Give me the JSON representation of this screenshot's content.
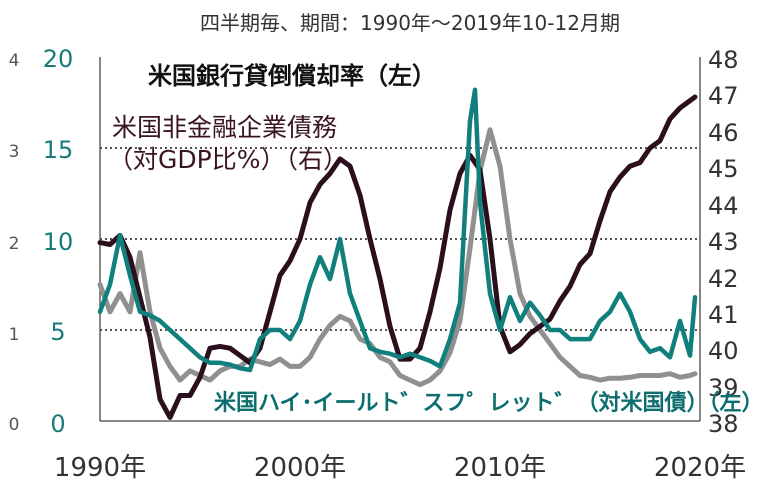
{
  "chart_data": {
    "type": "line",
    "subtitle": "四半期毎、期間：1990年～2019年10-12月期",
    "x_ticks": [
      "1990年",
      "2000年",
      "2010年",
      "2020年"
    ],
    "xlim": [
      1990,
      2020
    ],
    "left_axis_outer": {
      "ticks": [
        "0",
        "1",
        "2",
        "3",
        "4"
      ],
      "ylim": [
        0,
        4
      ]
    },
    "left_axis_inner": {
      "ticks": [
        "0",
        "5",
        "10",
        "15",
        "20"
      ],
      "ylim": [
        0,
        20
      ]
    },
    "right_axis": {
      "ticks": [
        "38",
        "39",
        "40",
        "41",
        "42",
        "43",
        "44",
        "45",
        "46",
        "47",
        "48"
      ],
      "ylim": [
        38,
        48
      ]
    },
    "grid": {
      "horizontal_dotted": true,
      "levels_left_inner": [
        5,
        10,
        15
      ]
    },
    "colors": {
      "charge_off": "#909090",
      "debt": "#2b0f1c",
      "spread": "#11807d",
      "grid": "#555555"
    },
    "series": [
      {
        "name": "米国銀行貸倒償却率（左）",
        "axis": "left_outer",
        "x": [
          1990.0,
          1990.5,
          1991.0,
          1991.5,
          1992.0,
          1992.5,
          1993.0,
          1993.5,
          1994.0,
          1994.5,
          1995.0,
          1995.5,
          1996.0,
          1996.5,
          1997.0,
          1997.5,
          1998.0,
          1998.5,
          1999.0,
          1999.5,
          2000.0,
          2000.5,
          2001.0,
          2001.5,
          2002.0,
          2002.5,
          2003.0,
          2003.5,
          2004.0,
          2004.5,
          2005.0,
          2005.5,
          2006.0,
          2006.5,
          2007.0,
          2007.5,
          2008.0,
          2008.5,
          2009.0,
          2009.5,
          2010.0,
          2010.5,
          2011.0,
          2011.5,
          2012.0,
          2012.5,
          2013.0,
          2013.5,
          2014.0,
          2014.5,
          2015.0,
          2015.5,
          2016.0,
          2016.5,
          2017.0,
          2017.5,
          2018.0,
          2018.5,
          2019.0,
          2019.5,
          2019.75
        ],
        "values": [
          1.5,
          1.2,
          1.4,
          1.2,
          1.85,
          1.2,
          0.8,
          0.6,
          0.45,
          0.55,
          0.5,
          0.45,
          0.55,
          0.6,
          0.6,
          0.68,
          0.65,
          0.62,
          0.68,
          0.6,
          0.6,
          0.7,
          0.9,
          1.05,
          1.15,
          1.1,
          0.9,
          0.85,
          0.7,
          0.65,
          0.5,
          0.45,
          0.4,
          0.45,
          0.55,
          0.75,
          1.1,
          1.9,
          2.75,
          3.2,
          2.8,
          2.0,
          1.4,
          1.15,
          1.0,
          0.85,
          0.7,
          0.6,
          0.5,
          0.48,
          0.45,
          0.47,
          0.47,
          0.48,
          0.5,
          0.5,
          0.5,
          0.52,
          0.48,
          0.5,
          0.52
        ]
      },
      {
        "name": "米国非金融企業債務（対GDP比%）（右）",
        "axis": "right",
        "x": [
          1990.0,
          1990.5,
          1991.0,
          1991.5,
          1992.0,
          1992.5,
          1993.0,
          1993.5,
          1994.0,
          1994.5,
          1995.0,
          1995.5,
          1996.0,
          1996.5,
          1997.0,
          1997.5,
          1998.0,
          1998.5,
          1999.0,
          1999.5,
          2000.0,
          2000.5,
          2001.0,
          2001.5,
          2002.0,
          2002.5,
          2003.0,
          2003.5,
          2004.0,
          2004.5,
          2005.0,
          2005.5,
          2006.0,
          2006.5,
          2007.0,
          2007.5,
          2008.0,
          2008.5,
          2009.0,
          2009.5,
          2010.0,
          2010.5,
          2011.0,
          2011.5,
          2012.0,
          2012.5,
          2013.0,
          2013.5,
          2014.0,
          2014.5,
          2015.0,
          2015.5,
          2016.0,
          2016.5,
          2017.0,
          2017.5,
          2018.0,
          2018.5,
          2019.0,
          2019.5,
          2019.75
        ],
        "values": [
          42.9,
          42.85,
          43.1,
          42.5,
          41.4,
          40.3,
          38.6,
          38.1,
          38.7,
          38.7,
          39.2,
          40.0,
          40.05,
          40.0,
          39.8,
          39.6,
          40.0,
          41.0,
          42.0,
          42.4,
          43.0,
          44.0,
          44.5,
          44.8,
          45.2,
          45.0,
          44.2,
          43.0,
          41.9,
          40.6,
          39.7,
          39.7,
          40.0,
          41.0,
          42.2,
          43.8,
          44.8,
          45.3,
          44.9,
          43.0,
          40.6,
          39.9,
          40.1,
          40.4,
          40.6,
          40.8,
          41.3,
          41.7,
          42.3,
          42.6,
          43.5,
          44.3,
          44.7,
          45.0,
          45.1,
          45.5,
          45.7,
          46.3,
          46.6,
          46.8,
          46.9
        ]
      },
      {
        "name": "米国ハイ・イールド・スプレッド（対米国債）（左）",
        "axis": "left_inner",
        "x": [
          1990.0,
          1990.5,
          1991.0,
          1991.5,
          1992.0,
          1992.5,
          1993.0,
          1993.5,
          1994.0,
          1994.5,
          1995.0,
          1995.5,
          1996.0,
          1996.5,
          1997.0,
          1997.5,
          1998.0,
          1998.5,
          1999.0,
          1999.5,
          2000.0,
          2000.5,
          2001.0,
          2001.5,
          2002.0,
          2002.5,
          2003.0,
          2003.5,
          2004.0,
          2004.5,
          2005.0,
          2005.5,
          2006.0,
          2006.5,
          2007.0,
          2007.5,
          2008.0,
          2008.5,
          2008.75,
          2009.0,
          2009.5,
          2010.0,
          2010.5,
          2011.0,
          2011.5,
          2012.0,
          2012.5,
          2013.0,
          2013.5,
          2014.0,
          2014.5,
          2015.0,
          2015.5,
          2016.0,
          2016.5,
          2017.0,
          2017.5,
          2018.0,
          2018.5,
          2019.0,
          2019.5,
          2019.75
        ],
        "values": [
          6.0,
          7.5,
          10.2,
          8.0,
          6.0,
          5.8,
          5.5,
          5.0,
          4.5,
          4.0,
          3.5,
          3.2,
          3.2,
          3.1,
          2.9,
          2.8,
          4.5,
          5.0,
          5.0,
          4.5,
          5.5,
          7.5,
          9.0,
          7.8,
          10.0,
          7.0,
          5.5,
          4.0,
          3.8,
          3.7,
          3.5,
          3.7,
          3.5,
          3.3,
          3.0,
          4.5,
          6.5,
          16.5,
          18.2,
          12.0,
          7.0,
          5.0,
          6.8,
          5.5,
          6.5,
          5.8,
          5.0,
          5.0,
          4.5,
          4.5,
          4.5,
          5.5,
          6.0,
          7.0,
          6.0,
          4.5,
          3.8,
          4.0,
          3.5,
          5.5,
          3.6,
          6.8
        ]
      }
    ]
  },
  "labels": {
    "charge_off": "米国銀行貸倒償却率（左）",
    "debt_line1": "米国非金融企業債務",
    "debt_line2": "（対GDP比%）（右）",
    "spread": "米国ハイ･イールト゛スフ゜レット゛（対米国債）（左）"
  }
}
